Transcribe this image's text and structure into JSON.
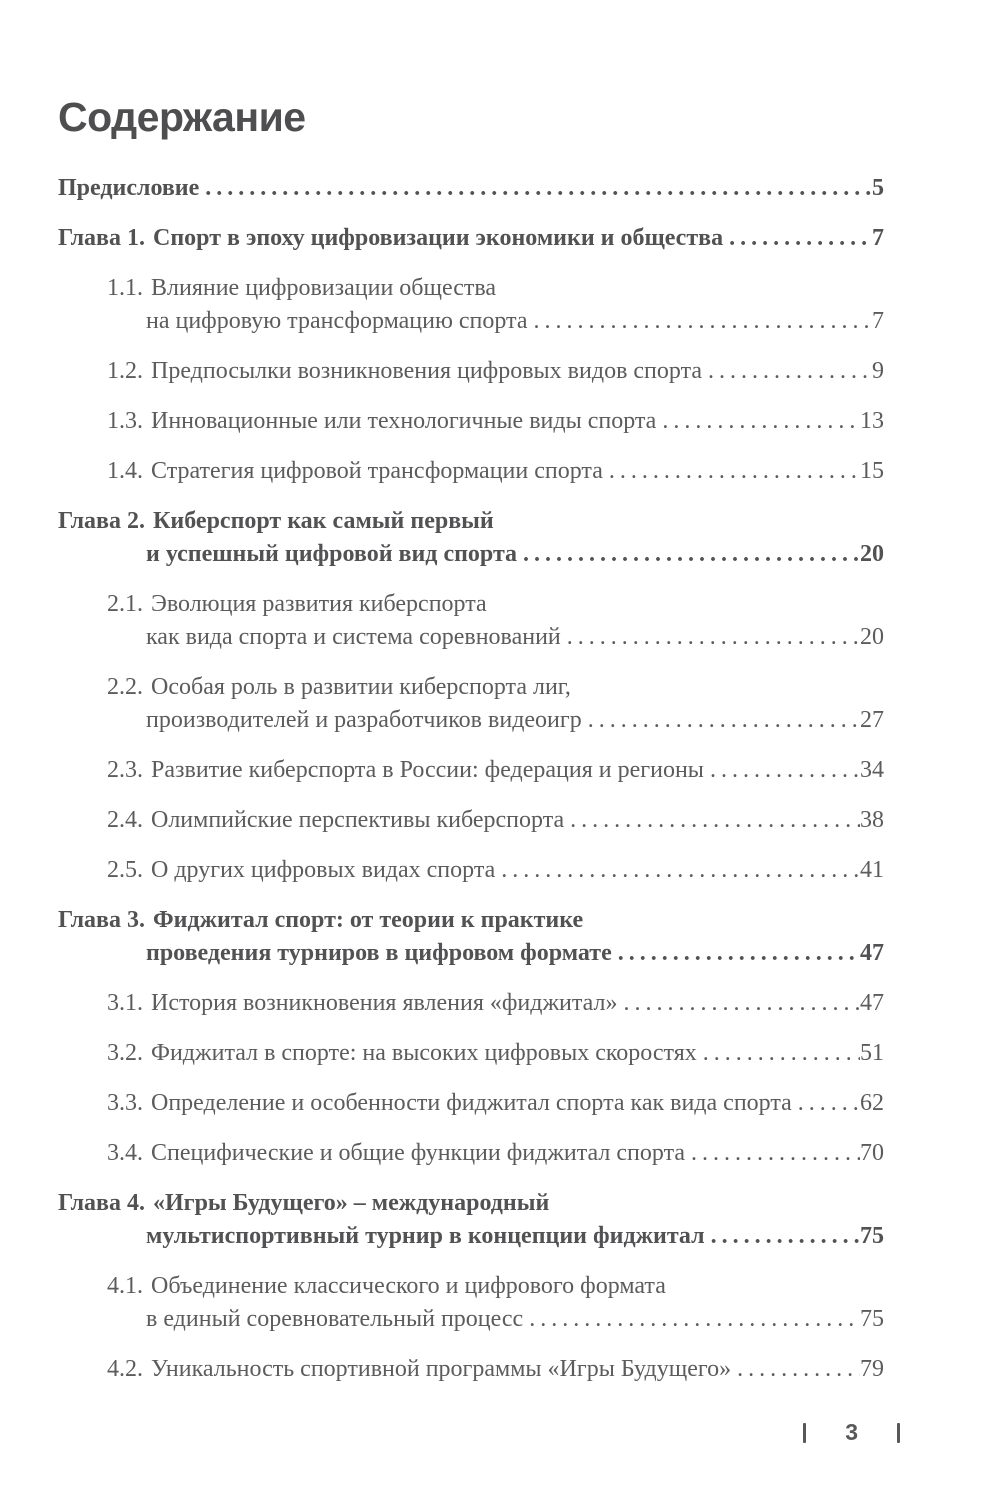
{
  "title": "Содержание",
  "colors": {
    "text": "#5c5c5e",
    "bold_text": "#525254",
    "heading": "#4e4e50",
    "footer": "#58585a"
  },
  "toc": {
    "entries": [
      {
        "kind": "top",
        "num": "",
        "line1": "Предисловие",
        "line2": null,
        "page": "5"
      },
      {
        "kind": "chapter",
        "num": "Глава 1.",
        "line1": "Спорт в эпоху цифровизации экономики и общества",
        "line2": null,
        "page": "7"
      },
      {
        "kind": "sub",
        "num": "1.1.",
        "line1": "Влияние цифровизации общества",
        "line2": "на цифровую трансформацию спорта",
        "page": "7"
      },
      {
        "kind": "sub",
        "num": "1.2.",
        "line1": "Предпосылки возникновения цифровых видов спорта",
        "line2": null,
        "page": "9"
      },
      {
        "kind": "sub",
        "num": "1.3.",
        "line1": "Инновационные или технологичные виды спорта",
        "line2": null,
        "page": "13"
      },
      {
        "kind": "sub",
        "num": "1.4.",
        "line1": "Стратегия цифровой трансформации спорта",
        "line2": null,
        "page": "15"
      },
      {
        "kind": "chapter",
        "num": "Глава 2.",
        "line1": "Киберспорт как самый первый",
        "line2": "и успешный цифровой вид спорта",
        "page": "20"
      },
      {
        "kind": "sub",
        "num": "2.1.",
        "line1": "Эволюция развития киберспорта",
        "line2": "как вида спорта и система соревнований",
        "page": "20"
      },
      {
        "kind": "sub",
        "num": "2.2.",
        "line1": "Особая роль в развитии киберспорта лиг,",
        "line2": "производителей и разработчиков видеоигр",
        "page": "27"
      },
      {
        "kind": "sub",
        "num": "2.3.",
        "line1": "Развитие киберспорта в России: федерация и регионы",
        "line2": null,
        "page": "34"
      },
      {
        "kind": "sub",
        "num": "2.4.",
        "line1": "Олимпийские перспективы киберспорта",
        "line2": null,
        "page": "38"
      },
      {
        "kind": "sub",
        "num": "2.5.",
        "line1": "О других цифровых видах спорта",
        "line2": null,
        "page": "41"
      },
      {
        "kind": "chapter",
        "num": "Глава 3.",
        "line1": "Фиджитал спорт: от теории к практике",
        "line2": "проведения турниров в цифровом формате",
        "page": "47"
      },
      {
        "kind": "sub",
        "num": "3.1.",
        "line1": "История возникновения явления «фиджитал»",
        "line2": null,
        "page": "47"
      },
      {
        "kind": "sub",
        "num": "3.2.",
        "line1": "Фиджитал в спорте: на высоких цифровых скоростях",
        "line2": null,
        "page": "51"
      },
      {
        "kind": "sub",
        "num": "3.3.",
        "line1": "Определение и особенности фиджитал спорта как вида спорта",
        "line2": null,
        "page": "62"
      },
      {
        "kind": "sub",
        "num": "3.4.",
        "line1": "Специфические и общие функции фиджитал спорта",
        "line2": null,
        "page": "70"
      },
      {
        "kind": "chapter",
        "num": "Глава 4.",
        "line1": "«Игры Будущего» – международный",
        "line2": "мультиспортивный турнир в концепции фиджитал",
        "page": "75"
      },
      {
        "kind": "sub",
        "num": "4.1.",
        "line1": "Объединение классического и цифрового формата",
        "line2": "в единый соревновательный процесс",
        "page": "75"
      },
      {
        "kind": "sub",
        "num": "4.2.",
        "line1": "Уникальность спортивной программы «Игры Будущего»",
        "line2": null,
        "page": "79"
      }
    ]
  },
  "footer": {
    "page_number": "3"
  }
}
